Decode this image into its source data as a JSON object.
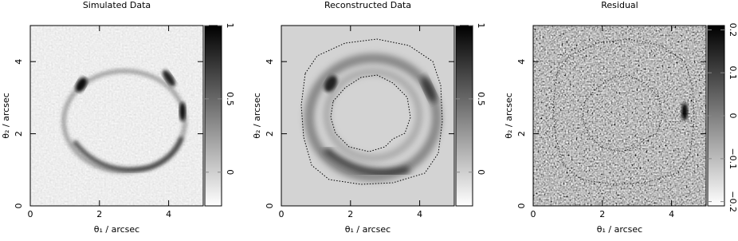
{
  "chart_data": [
    {
      "type": "image",
      "title": "Simulated Data",
      "xlabel": "θ₁ / arcsec",
      "ylabel": "θ₂ / arcsec",
      "xlim": [
        0,
        5
      ],
      "ylim": [
        0,
        5
      ],
      "xticks": [
        0,
        2,
        4
      ],
      "yticks": [
        0,
        2,
        4
      ],
      "clim": [
        -0.23,
        1
      ],
      "cticks": [
        0,
        0.5,
        1
      ]
    },
    {
      "type": "image",
      "title": "Reconstructed Data",
      "xlabel": "θ₁ / arcsec",
      "ylabel": "θ₂ / arcsec",
      "xlim": [
        0,
        5
      ],
      "ylim": [
        0,
        5
      ],
      "xticks": [
        0,
        2,
        4
      ],
      "yticks": [
        0,
        2,
        4
      ],
      "clim": [
        -0.23,
        1
      ],
      "cticks": [
        0,
        0.5,
        1
      ]
    },
    {
      "type": "image",
      "title": "Residual",
      "xlabel": "θ₁ / arcsec",
      "ylabel": "θ₂ / arcsec",
      "xlim": [
        0,
        5
      ],
      "ylim": [
        0,
        5
      ],
      "xticks": [
        0,
        2,
        4
      ],
      "yticks": [
        0,
        2,
        4
      ],
      "clim": [
        -0.21,
        0.21
      ],
      "cticks": [
        {
          "value": -0.2,
          "label": "−0.2"
        },
        {
          "value": -0.1,
          "label": "−0.1"
        },
        0,
        0.1,
        0.2
      ]
    }
  ]
}
